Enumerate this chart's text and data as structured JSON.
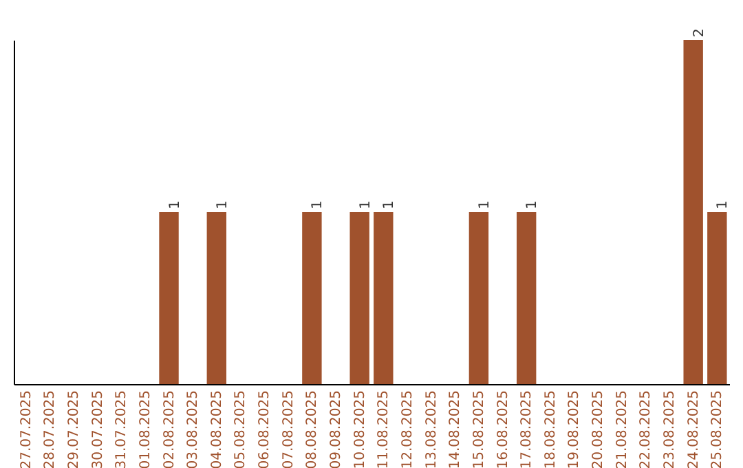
{
  "chart_data": {
    "type": "bar",
    "categories": [
      "27.07.2025",
      "28.07.2025",
      "29.07.2025",
      "30.07.2025",
      "31.07.2025",
      "01.08.2025",
      "02.08.2025",
      "03.08.2025",
      "04.08.2025",
      "05.08.2025",
      "06.08.2025",
      "07.08.2025",
      "08.08.2025",
      "09.08.2025",
      "10.08.2025",
      "11.08.2025",
      "12.08.2025",
      "13.08.2025",
      "14.08.2025",
      "15.08.2025",
      "16.08.2025",
      "17.08.2025",
      "18.08.2025",
      "19.08.2025",
      "20.08.2025",
      "21.08.2025",
      "22.08.2025",
      "23.08.2025",
      "24.08.2025",
      "25.08.2025"
    ],
    "values": [
      0,
      0,
      0,
      0,
      0,
      0,
      1,
      0,
      1,
      0,
      0,
      0,
      1,
      0,
      1,
      1,
      0,
      0,
      0,
      1,
      0,
      1,
      0,
      0,
      0,
      0,
      0,
      0,
      2,
      1
    ],
    "value_labels": [
      null,
      null,
      null,
      null,
      null,
      null,
      "1",
      null,
      "1",
      null,
      null,
      null,
      "1",
      null,
      "1",
      "1",
      null,
      null,
      null,
      "1",
      null,
      "1",
      null,
      null,
      null,
      null,
      null,
      null,
      "2",
      "1"
    ],
    "color": "#a0522d"
  }
}
